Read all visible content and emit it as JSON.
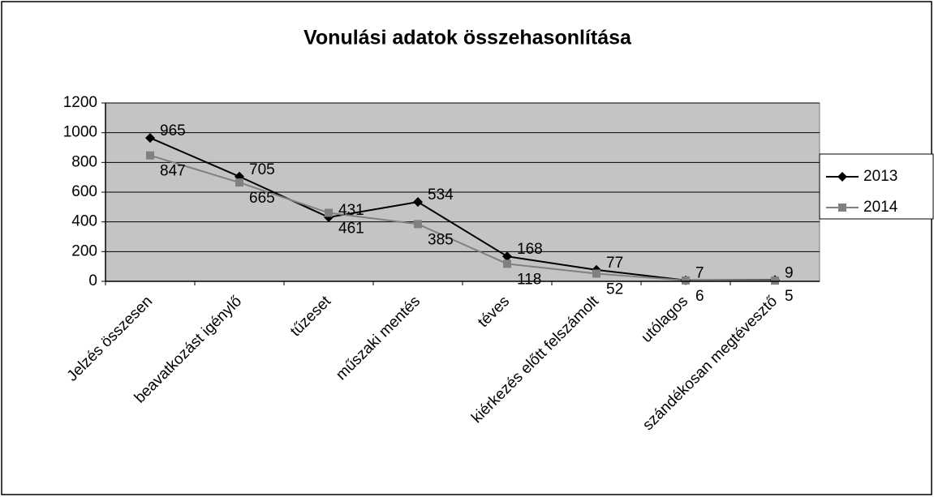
{
  "chart_data": {
    "type": "line",
    "title": "Vonulási adatok összehasonlítása",
    "categories": [
      "Jelzés összesen",
      "beavatkozást igénylő",
      "tűzeset",
      "műszaki mentés",
      "téves",
      "kiérkezés előtt felszámolt",
      "utólagos",
      "szándékosan megtévesztő"
    ],
    "series": [
      {
        "name": "2013",
        "color": "#000000",
        "marker": "diamond",
        "values": [
          965,
          705,
          431,
          534,
          168,
          77,
          7,
          9
        ]
      },
      {
        "name": "2014",
        "color": "#808080",
        "marker": "square",
        "values": [
          847,
          665,
          461,
          385,
          118,
          52,
          6,
          5
        ]
      }
    ],
    "ylim": [
      0,
      1200
    ],
    "yticks": [
      0,
      200,
      400,
      600,
      800,
      1000,
      1200
    ],
    "grid": true,
    "legend": "right"
  }
}
